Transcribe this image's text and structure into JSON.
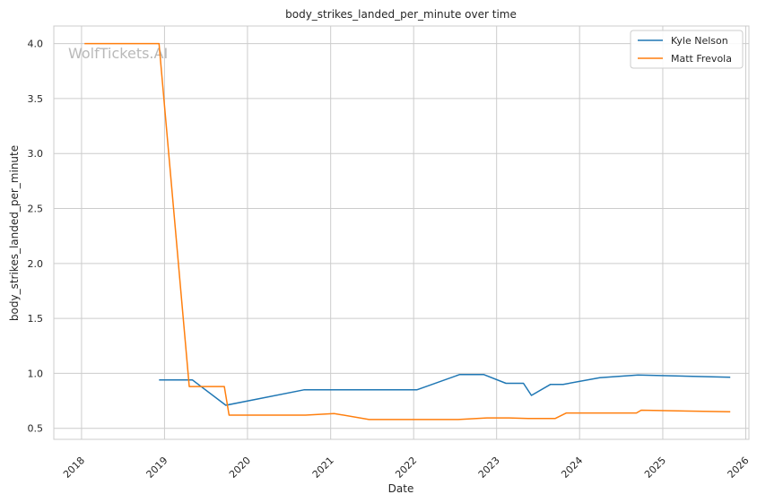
{
  "chart_data": {
    "type": "line",
    "title": "body_strikes_landed_per_minute over time",
    "xlabel": "Date",
    "ylabel": "body_strikes_landed_per_minute",
    "watermark": "WolfTickets.AI",
    "x_axis": "date",
    "xlim": [
      "2017-09-01",
      "2026-01-15"
    ],
    "ylim": [
      0.4,
      4.16
    ],
    "x_ticks": [
      "2018",
      "2019",
      "2020",
      "2021",
      "2022",
      "2023",
      "2024",
      "2025",
      "2026"
    ],
    "y_ticks": [
      "0.5",
      "1.0",
      "1.5",
      "2.0",
      "2.5",
      "3.0",
      "3.5",
      "4.0"
    ],
    "grid": true,
    "legend_position": "top-right",
    "series": [
      {
        "name": "Kyle Nelson",
        "color": "#1f77b4",
        "points": [
          [
            "2018-12-08",
            0.94
          ],
          [
            "2019-05-04",
            0.94
          ],
          [
            "2019-09-28",
            0.71
          ],
          [
            "2020-09-05",
            0.85
          ],
          [
            "2022-01-15",
            0.85
          ],
          [
            "2022-07-23",
            0.99
          ],
          [
            "2022-11-05",
            0.99
          ],
          [
            "2023-02-11",
            0.91
          ],
          [
            "2023-04-29",
            0.91
          ],
          [
            "2023-06-03",
            0.8
          ],
          [
            "2023-08-26",
            0.9
          ],
          [
            "2023-10-21",
            0.9
          ],
          [
            "2024-03-30",
            0.96
          ],
          [
            "2024-09-14",
            0.985
          ],
          [
            "2025-10-25",
            0.965
          ]
        ]
      },
      {
        "name": "Matt Frevola",
        "color": "#ff7f0e",
        "points": [
          [
            "2018-01-14",
            4.0
          ],
          [
            "2018-12-08",
            4.0
          ],
          [
            "2019-04-20",
            0.88
          ],
          [
            "2019-09-21",
            0.88
          ],
          [
            "2019-10-12",
            0.62
          ],
          [
            "2020-09-12",
            0.62
          ],
          [
            "2021-01-16",
            0.635
          ],
          [
            "2021-06-19",
            0.58
          ],
          [
            "2022-07-16",
            0.58
          ],
          [
            "2022-11-19",
            0.595
          ],
          [
            "2023-02-25",
            0.595
          ],
          [
            "2023-05-20",
            0.59
          ],
          [
            "2023-09-16",
            0.59
          ],
          [
            "2023-11-04",
            0.64
          ],
          [
            "2024-09-07",
            0.64
          ],
          [
            "2024-09-28",
            0.665
          ],
          [
            "2025-10-25",
            0.65
          ]
        ]
      }
    ]
  }
}
